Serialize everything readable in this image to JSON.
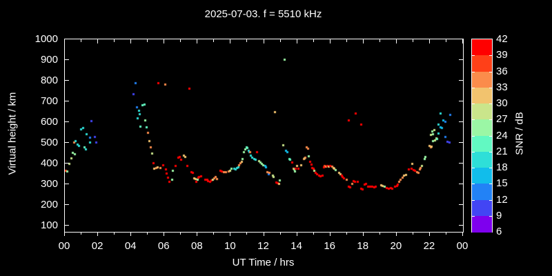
{
  "title": "2025-07-03. f = 5510 kHz",
  "axes": {
    "x": {
      "label": "UT Time / hrs",
      "tick_labels": [
        "00",
        "02",
        "04",
        "06",
        "08",
        "10",
        "12",
        "14",
        "16",
        "18",
        "20",
        "22",
        "00"
      ],
      "major_tick_hours": 2,
      "minor_tick_hours": 1
    },
    "y": {
      "label": "Virtual height / km",
      "tick_labels": [
        "1000",
        "900",
        "800",
        "700",
        "600",
        "500",
        "400",
        "300",
        "200",
        "100"
      ]
    }
  },
  "colorbar": {
    "label": "SNR / dB",
    "tick_labels": [
      "42",
      "39",
      "36",
      "33",
      "30",
      "27",
      "24",
      "21",
      "18",
      "15",
      "12",
      "9",
      "6"
    ],
    "segments": [
      {
        "min": 39,
        "max": 42,
        "color": "#ff0000"
      },
      {
        "min": 36,
        "max": 39,
        "color": "#ff4018"
      },
      {
        "min": 33,
        "max": 36,
        "color": "#fb8c4b"
      },
      {
        "min": 30,
        "max": 33,
        "color": "#f2c36e"
      },
      {
        "min": 27,
        "max": 30,
        "color": "#cae58b"
      },
      {
        "min": 24,
        "max": 27,
        "color": "#9bf7a5"
      },
      {
        "min": 21,
        "max": 24,
        "color": "#62f9c2"
      },
      {
        "min": 18,
        "max": 21,
        "color": "#2edfd8"
      },
      {
        "min": 15,
        "max": 18,
        "color": "#11bdeb"
      },
      {
        "min": 12,
        "max": 15,
        "color": "#2282f6"
      },
      {
        "min": 9,
        "max": 12,
        "color": "#4245f4"
      },
      {
        "min": 6,
        "max": 9,
        "color": "#7e00ee"
      }
    ]
  },
  "chart_data": {
    "type": "scatter",
    "title": "2025-07-03. f = 5510 kHz",
    "xlabel": "UT Time / hrs",
    "ylabel": "Virtual height / km",
    "colorbar_label": "SNR / dB",
    "xlim": [
      0,
      24
    ],
    "ylim": [
      70,
      1000
    ],
    "snr_range": [
      6,
      42
    ],
    "marker": "square-3px",
    "background": "#000000",
    "foreground": "#ffffff",
    "points_format": [
      "ut_hours",
      "virtual_height_km",
      "snr_db"
    ],
    "points": [
      [
        0.03,
        368,
        37
      ],
      [
        0.12,
        363,
        25
      ],
      [
        0.25,
        400,
        28
      ],
      [
        0.37,
        428,
        28
      ],
      [
        0.44,
        453,
        25
      ],
      [
        0.58,
        448,
        25
      ],
      [
        0.54,
        503,
        34
      ],
      [
        0.63,
        511,
        19
      ],
      [
        0.74,
        494,
        19
      ],
      [
        0.84,
        487,
        19
      ],
      [
        0.97,
        567,
        19
      ],
      [
        1.08,
        573,
        19
      ],
      [
        1.15,
        481,
        22
      ],
      [
        1.23,
        470,
        19
      ],
      [
        1.3,
        543,
        19
      ],
      [
        1.49,
        528,
        13
      ],
      [
        1.5,
        503,
        19
      ],
      [
        1.6,
        607,
        10
      ],
      [
        1.78,
        531,
        10
      ],
      [
        1.86,
        503,
        10
      ],
      [
        4.13,
        737,
        10
      ],
      [
        4.25,
        790,
        13
      ],
      [
        4.33,
        673,
        13
      ],
      [
        4.37,
        620,
        19
      ],
      [
        4.46,
        657,
        19
      ],
      [
        4.51,
        640,
        19
      ],
      [
        4.55,
        580,
        22
      ],
      [
        4.67,
        683,
        22
      ],
      [
        4.79,
        686,
        22
      ],
      [
        4.84,
        610,
        25
      ],
      [
        4.92,
        577,
        22
      ],
      [
        5.01,
        550,
        34
      ],
      [
        5.09,
        510,
        31
      ],
      [
        5.17,
        481,
        34
      ],
      [
        5.25,
        450,
        28
      ],
      [
        5.32,
        403,
        40
      ],
      [
        5.38,
        377,
        31
      ],
      [
        5.47,
        380,
        34
      ],
      [
        5.58,
        382,
        31
      ],
      [
        5.63,
        790,
        40
      ],
      [
        5.72,
        380,
        34
      ],
      [
        5.9,
        393,
        40
      ],
      [
        6.03,
        783,
        34
      ],
      [
        6.06,
        373,
        40
      ],
      [
        6.13,
        353,
        40
      ],
      [
        6.2,
        333,
        40
      ],
      [
        6.26,
        313,
        40
      ],
      [
        6.44,
        324,
        25
      ],
      [
        6.47,
        367,
        25
      ],
      [
        6.67,
        390,
        40
      ],
      [
        6.82,
        430,
        40
      ],
      [
        6.9,
        433,
        40
      ],
      [
        7.0,
        420,
        40
      ],
      [
        7.17,
        440,
        31
      ],
      [
        7.25,
        433,
        31
      ],
      [
        7.38,
        390,
        40
      ],
      [
        7.49,
        764,
        40
      ],
      [
        7.6,
        360,
        40
      ],
      [
        7.7,
        357,
        40
      ],
      [
        7.77,
        330,
        31
      ],
      [
        7.88,
        328,
        31
      ],
      [
        7.91,
        313,
        40
      ],
      [
        7.97,
        323,
        25
      ],
      [
        8.01,
        333,
        40
      ],
      [
        8.09,
        336,
        40
      ],
      [
        8.2,
        340,
        40
      ],
      [
        8.45,
        325,
        40
      ],
      [
        8.55,
        322,
        40
      ],
      [
        8.63,
        318,
        40
      ],
      [
        8.74,
        313,
        40
      ],
      [
        8.82,
        320,
        40
      ],
      [
        8.9,
        323,
        28
      ],
      [
        9.0,
        330,
        34
      ],
      [
        9.08,
        336,
        34
      ],
      [
        9.16,
        327,
        34
      ],
      [
        9.37,
        367,
        40
      ],
      [
        9.45,
        363,
        40
      ],
      [
        9.58,
        360,
        34
      ],
      [
        9.7,
        361,
        34
      ],
      [
        9.86,
        363,
        34
      ],
      [
        9.93,
        367,
        28
      ],
      [
        10.01,
        377,
        25
      ],
      [
        10.2,
        377,
        19
      ],
      [
        10.28,
        374,
        19
      ],
      [
        10.36,
        380,
        19
      ],
      [
        10.43,
        383,
        19
      ],
      [
        10.5,
        393,
        34
      ],
      [
        10.56,
        403,
        34
      ],
      [
        10.63,
        410,
        31
      ],
      [
        10.7,
        423,
        25
      ],
      [
        10.78,
        457,
        25
      ],
      [
        10.85,
        470,
        25
      ],
      [
        10.92,
        480,
        22
      ],
      [
        11.0,
        477,
        22
      ],
      [
        11.06,
        463,
        19
      ],
      [
        11.1,
        457,
        16
      ],
      [
        11.14,
        457,
        34
      ],
      [
        11.18,
        440,
        19
      ],
      [
        11.28,
        430,
        19
      ],
      [
        11.39,
        423,
        19
      ],
      [
        11.47,
        420,
        19
      ],
      [
        11.55,
        457,
        40
      ],
      [
        11.68,
        413,
        28
      ],
      [
        11.78,
        407,
        25
      ],
      [
        11.87,
        400,
        25
      ],
      [
        11.95,
        393,
        25
      ],
      [
        12.05,
        390,
        16
      ],
      [
        12.11,
        385,
        16
      ],
      [
        12.2,
        360,
        34
      ],
      [
        12.26,
        350,
        13
      ],
      [
        12.31,
        357,
        34
      ],
      [
        12.5,
        343,
        28
      ],
      [
        12.57,
        337,
        28
      ],
      [
        12.65,
        650,
        31
      ],
      [
        12.72,
        310,
        40
      ],
      [
        12.8,
        307,
        40
      ],
      [
        12.88,
        303,
        31
      ],
      [
        12.95,
        320,
        25
      ],
      [
        13.16,
        490,
        28
      ],
      [
        13.22,
        905,
        25
      ],
      [
        13.31,
        463,
        16
      ],
      [
        13.4,
        457,
        16
      ],
      [
        13.5,
        423,
        22
      ],
      [
        13.58,
        420,
        22
      ],
      [
        13.67,
        407,
        40
      ],
      [
        13.76,
        377,
        34
      ],
      [
        13.81,
        373,
        25
      ],
      [
        13.86,
        363,
        25
      ],
      [
        13.91,
        377,
        40
      ],
      [
        13.97,
        390,
        31
      ],
      [
        14.05,
        377,
        40
      ],
      [
        14.21,
        393,
        31
      ],
      [
        14.38,
        423,
        34
      ],
      [
        14.45,
        428,
        28
      ],
      [
        14.48,
        430,
        34
      ],
      [
        14.57,
        480,
        34
      ],
      [
        14.65,
        473,
        34
      ],
      [
        14.7,
        437,
        25
      ],
      [
        14.78,
        410,
        40
      ],
      [
        14.83,
        397,
        40
      ],
      [
        14.88,
        380,
        40
      ],
      [
        14.96,
        377,
        40
      ],
      [
        15.01,
        367,
        28
      ],
      [
        15.1,
        357,
        40
      ],
      [
        15.2,
        350,
        40
      ],
      [
        15.3,
        345,
        40
      ],
      [
        15.4,
        340,
        40
      ],
      [
        15.5,
        343,
        40
      ],
      [
        15.58,
        383,
        40
      ],
      [
        15.65,
        390,
        37
      ],
      [
        15.73,
        388,
        34
      ],
      [
        15.81,
        390,
        40
      ],
      [
        15.88,
        388,
        31
      ],
      [
        15.96,
        390,
        40
      ],
      [
        16.08,
        387,
        34
      ],
      [
        16.16,
        380,
        31
      ],
      [
        16.23,
        377,
        31
      ],
      [
        16.29,
        370,
        25
      ],
      [
        16.5,
        357,
        31
      ],
      [
        16.59,
        350,
        31
      ],
      [
        16.66,
        343,
        40
      ],
      [
        16.73,
        337,
        40
      ],
      [
        16.81,
        330,
        40
      ],
      [
        16.95,
        323,
        34
      ],
      [
        17.08,
        610,
        40
      ],
      [
        17.11,
        290,
        40
      ],
      [
        17.18,
        288,
        40
      ],
      [
        17.3,
        303,
        34
      ],
      [
        17.4,
        317,
        40
      ],
      [
        17.48,
        313,
        40
      ],
      [
        17.52,
        643,
        40
      ],
      [
        17.62,
        313,
        40
      ],
      [
        17.84,
        590,
        40
      ],
      [
        17.86,
        280,
        40
      ],
      [
        17.93,
        277,
        40
      ],
      [
        18.06,
        300,
        40
      ],
      [
        18.14,
        303,
        40
      ],
      [
        18.27,
        290,
        40
      ],
      [
        18.4,
        289,
        40
      ],
      [
        18.52,
        290,
        40
      ],
      [
        18.63,
        287,
        40
      ],
      [
        18.71,
        290,
        40
      ],
      [
        19.05,
        297,
        31
      ],
      [
        19.14,
        293,
        31
      ],
      [
        19.26,
        290,
        25
      ],
      [
        19.4,
        283,
        40
      ],
      [
        19.52,
        281,
        40
      ],
      [
        19.63,
        283,
        40
      ],
      [
        19.73,
        281,
        40
      ],
      [
        19.9,
        290,
        40
      ],
      [
        20.0,
        293,
        40
      ],
      [
        20.06,
        300,
        40
      ],
      [
        20.12,
        313,
        34
      ],
      [
        20.23,
        323,
        34
      ],
      [
        20.33,
        333,
        34
      ],
      [
        20.43,
        343,
        31
      ],
      [
        20.53,
        347,
        31
      ],
      [
        20.71,
        373,
        40
      ],
      [
        20.88,
        377,
        40
      ],
      [
        20.92,
        400,
        31
      ],
      [
        21.0,
        370,
        40
      ],
      [
        21.1,
        367,
        40
      ],
      [
        21.2,
        360,
        34
      ],
      [
        21.3,
        357,
        34
      ],
      [
        21.36,
        373,
        34
      ],
      [
        21.43,
        380,
        34
      ],
      [
        21.51,
        390,
        28
      ],
      [
        21.65,
        423,
        25
      ],
      [
        21.72,
        433,
        25
      ],
      [
        21.96,
        487,
        31
      ],
      [
        22.04,
        480,
        34
      ],
      [
        22.1,
        483,
        31
      ],
      [
        22.06,
        540,
        28
      ],
      [
        22.12,
        557,
        25
      ],
      [
        22.18,
        543,
        25
      ],
      [
        22.26,
        563,
        28
      ],
      [
        22.16,
        510,
        25
      ],
      [
        22.31,
        513,
        28
      ],
      [
        22.38,
        523,
        28
      ],
      [
        22.41,
        520,
        22
      ],
      [
        22.49,
        547,
        19
      ],
      [
        22.52,
        590,
        19
      ],
      [
        22.61,
        577,
        16
      ],
      [
        22.62,
        643,
        19
      ],
      [
        22.71,
        573,
        16
      ],
      [
        22.81,
        610,
        16
      ],
      [
        22.9,
        603,
        13
      ],
      [
        22.92,
        530,
        13
      ],
      [
        23.06,
        507,
        10
      ],
      [
        23.16,
        503,
        10
      ],
      [
        23.21,
        637,
        13
      ]
    ]
  }
}
